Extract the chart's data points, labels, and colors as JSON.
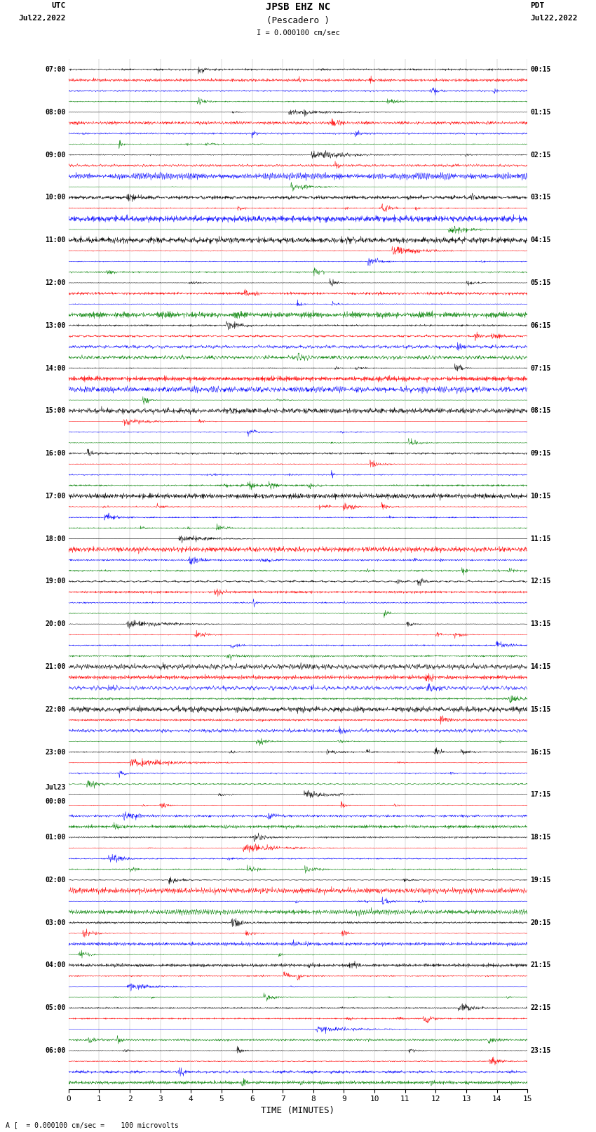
{
  "title_line1": "JPSB EHZ NC",
  "title_line2": "(Pescadero )",
  "scale_label": "I = 0.000100 cm/sec",
  "left_label_top": "UTC",
  "left_label_date": "Jul22,2022",
  "right_label_top": "PDT",
  "right_label_date": "Jul22,2022",
  "bottom_label": "TIME (MINUTES)",
  "bottom_note": "A [  = 0.000100 cm/sec =    100 microvolts",
  "utc_labels": [
    "07:00",
    "08:00",
    "09:00",
    "10:00",
    "11:00",
    "12:00",
    "13:00",
    "14:00",
    "15:00",
    "16:00",
    "17:00",
    "18:00",
    "19:00",
    "20:00",
    "21:00",
    "22:00",
    "23:00",
    "Jul23\n00:00",
    "01:00",
    "02:00",
    "03:00",
    "04:00",
    "05:00",
    "06:00"
  ],
  "pdt_labels": [
    "00:15",
    "01:15",
    "02:15",
    "03:15",
    "04:15",
    "05:15",
    "06:15",
    "07:15",
    "08:15",
    "09:15",
    "10:15",
    "11:15",
    "12:15",
    "13:15",
    "14:15",
    "15:15",
    "16:15",
    "17:15",
    "18:15",
    "19:15",
    "20:15",
    "21:15",
    "22:15",
    "23:15"
  ],
  "n_hour_groups": 24,
  "traces_per_group": 4,
  "trace_colors": [
    "black",
    "red",
    "blue",
    "green"
  ],
  "xmin": 0,
  "xmax": 15,
  "background_color": "white",
  "fig_width": 8.5,
  "fig_height": 16.13,
  "dpi": 100
}
